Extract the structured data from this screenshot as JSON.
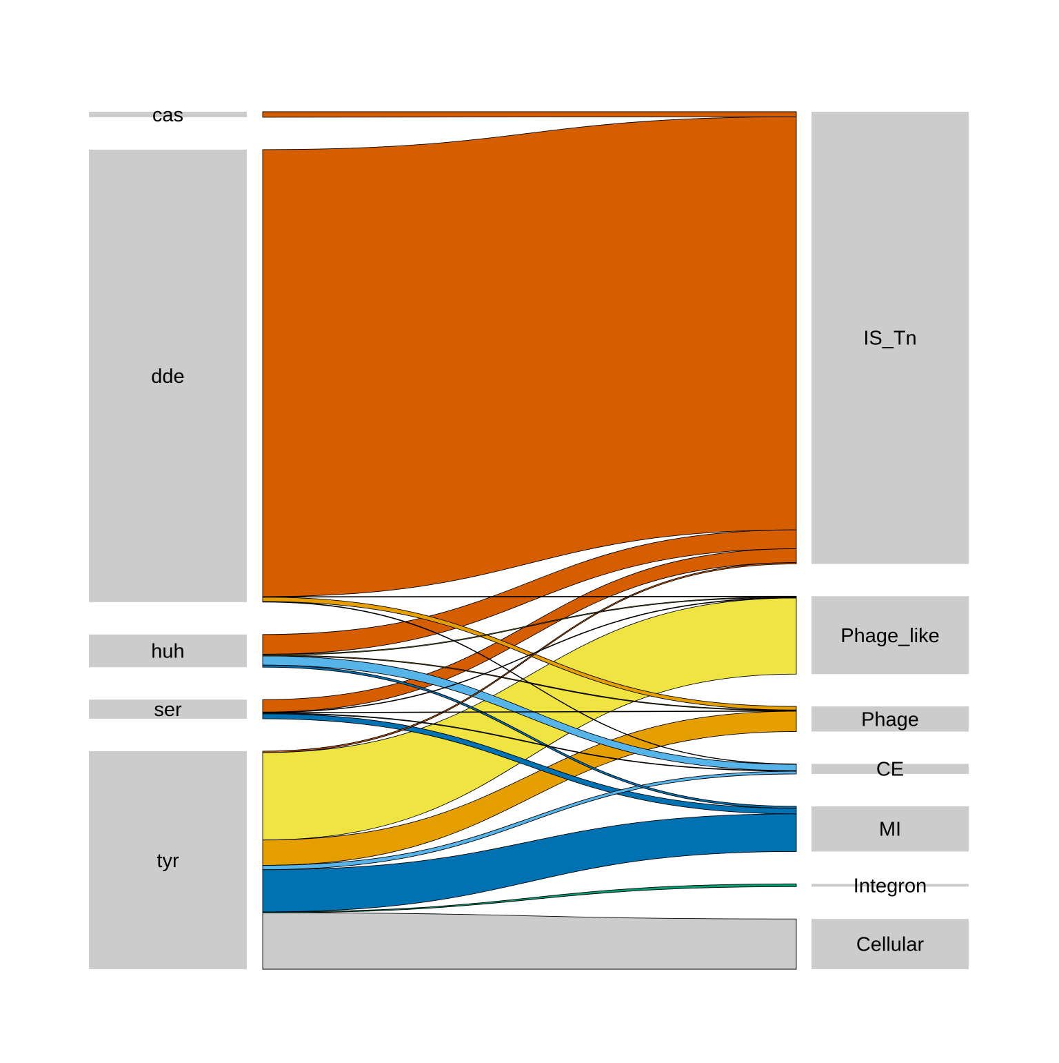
{
  "chart_data": {
    "type": "alluvial",
    "left_axis": [
      {
        "name": "cas",
        "value": 2
      },
      {
        "name": "dde",
        "value": 166
      },
      {
        "name": "huh",
        "value": 12
      },
      {
        "name": "ser",
        "value": 7
      },
      {
        "name": "tyr",
        "value": 80
      }
    ],
    "right_axis": [
      {
        "name": "IS_Tn",
        "value": 180
      },
      {
        "name": "Phage_like",
        "value": 31
      },
      {
        "name": "Phage",
        "value": 10
      },
      {
        "name": "CE",
        "value": 4
      },
      {
        "name": "MI",
        "value": 18
      },
      {
        "name": "Integron",
        "value": 0.3
      },
      {
        "name": "Cellular",
        "value": 20
      }
    ],
    "flows": [
      {
        "from": "cas",
        "to": "IS_Tn",
        "value": 2,
        "color": "#D55E00"
      },
      {
        "from": "dde",
        "to": "IS_Tn",
        "value": 164,
        "color": "#D55E00"
      },
      {
        "from": "dde",
        "to": "Phage_like",
        "value": 0.2,
        "color": "#F0E442"
      },
      {
        "from": "dde",
        "to": "Phage",
        "value": 1.6,
        "color": "#E69F00"
      },
      {
        "from": "dde",
        "to": "CE",
        "value": 0.2,
        "color": "#56B4E9"
      },
      {
        "from": "huh",
        "to": "IS_Tn",
        "value": 7.5,
        "color": "#D55E00"
      },
      {
        "from": "huh",
        "to": "Phage_like",
        "value": 0.3,
        "color": "#F0E442"
      },
      {
        "from": "huh",
        "to": "Phage",
        "value": 0.3,
        "color": "#E69F00"
      },
      {
        "from": "huh",
        "to": "CE",
        "value": 3.5,
        "color": "#56B4E9"
      },
      {
        "from": "huh",
        "to": "MI",
        "value": 0.8,
        "color": "#0072B2"
      },
      {
        "from": "ser",
        "to": "IS_Tn",
        "value": 5.5,
        "color": "#D55E00"
      },
      {
        "from": "ser",
        "to": "Phage_like",
        "value": 0.2,
        "color": "#F0E442"
      },
      {
        "from": "ser",
        "to": "Phage",
        "value": 0.2,
        "color": "#E69F00"
      },
      {
        "from": "ser",
        "to": "CE",
        "value": 0.3,
        "color": "#56B4E9"
      },
      {
        "from": "ser",
        "to": "MI",
        "value": 2.2,
        "color": "#0072B2"
      },
      {
        "from": "tyr",
        "to": "IS_Tn",
        "value": 0.5,
        "color": "#D55E00"
      },
      {
        "from": "tyr",
        "to": "Phage_like",
        "value": 31,
        "color": "#F0E442"
      },
      {
        "from": "tyr",
        "to": "Phage",
        "value": 9,
        "color": "#E69F00"
      },
      {
        "from": "tyr",
        "to": "CE",
        "value": 1.5,
        "color": "#56B4E9"
      },
      {
        "from": "tyr",
        "to": "MI",
        "value": 15,
        "color": "#0072B2"
      },
      {
        "from": "tyr",
        "to": "Integron",
        "value": 0.3,
        "color": "#009E73"
      },
      {
        "from": "tyr",
        "to": "Cellular",
        "value": 20,
        "color": "#CCCCCC"
      }
    ],
    "axis_box_color": "#CCCCCC"
  }
}
